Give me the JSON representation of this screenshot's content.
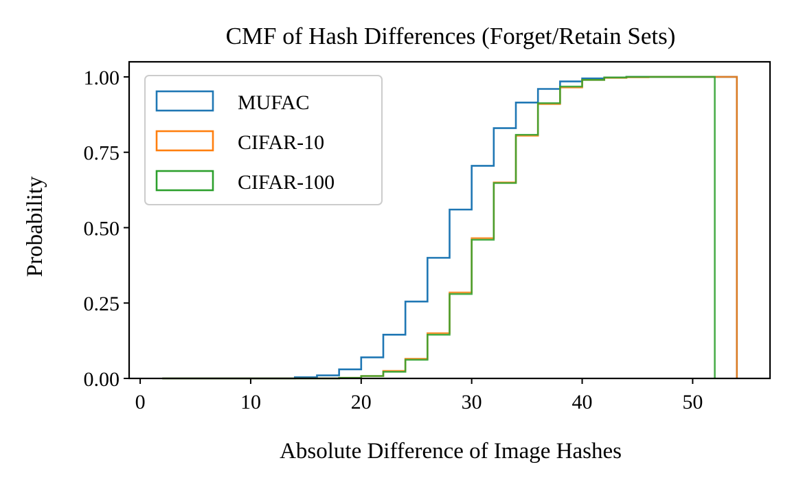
{
  "chart_data": {
    "type": "histogram-step-cumulative",
    "title": "CMF of Hash Differences (Forget/Retain Sets)",
    "xlabel": "Absolute Difference of Image Hashes",
    "ylabel": "Probability",
    "xlim": [
      -1,
      57
    ],
    "ylim": [
      0,
      1.05
    ],
    "xticks": [
      0,
      10,
      20,
      30,
      40,
      50
    ],
    "xtick_labels": [
      "0",
      "10",
      "20",
      "30",
      "40",
      "50"
    ],
    "yticks": [
      0,
      0.25,
      0.5,
      0.75,
      1.0
    ],
    "ytick_labels": [
      "0.00",
      "0.25",
      "0.50",
      "0.75",
      "1.00"
    ],
    "grid": false,
    "legend_position": "top-left",
    "series": [
      {
        "name": "MUFAC",
        "color": "#1f77b4",
        "edges": [
          2,
          4,
          6,
          8,
          10,
          12,
          14,
          16,
          18,
          20,
          22,
          24,
          26,
          28,
          30,
          32,
          34,
          36,
          38,
          40,
          42,
          44,
          46,
          48,
          50,
          52,
          54
        ],
        "values": [
          0,
          0,
          0,
          0,
          0,
          0,
          0.004,
          0.01,
          0.03,
          0.07,
          0.145,
          0.255,
          0.4,
          0.56,
          0.705,
          0.83,
          0.915,
          0.96,
          0.985,
          0.995,
          0.998,
          1,
          1,
          1,
          1,
          1
        ]
      },
      {
        "name": "CIFAR-10",
        "color": "#ff7f0e",
        "edges": [
          2,
          4,
          6,
          8,
          10,
          12,
          14,
          16,
          18,
          20,
          22,
          24,
          26,
          28,
          30,
          32,
          34,
          36,
          38,
          40,
          42,
          44,
          46,
          48,
          50,
          52,
          54
        ],
        "values": [
          0,
          0,
          0,
          0,
          0,
          0,
          0,
          0,
          0.002,
          0.008,
          0.025,
          0.065,
          0.15,
          0.285,
          0.465,
          0.65,
          0.805,
          0.91,
          0.965,
          0.99,
          0.997,
          0.999,
          1,
          1,
          1,
          1
        ]
      },
      {
        "name": "CIFAR-100",
        "color": "#2ca02c",
        "edges": [
          2,
          4,
          6,
          8,
          10,
          12,
          14,
          16,
          18,
          20,
          22,
          24,
          26,
          28,
          30,
          32,
          34,
          36,
          38,
          40,
          42,
          44,
          46,
          48,
          50,
          52
        ],
        "values": [
          0,
          0,
          0,
          0,
          0,
          0,
          0,
          0,
          0.002,
          0.008,
          0.022,
          0.062,
          0.145,
          0.28,
          0.46,
          0.648,
          0.808,
          0.913,
          0.968,
          0.99,
          0.998,
          1,
          1,
          1,
          1
        ]
      }
    ]
  }
}
